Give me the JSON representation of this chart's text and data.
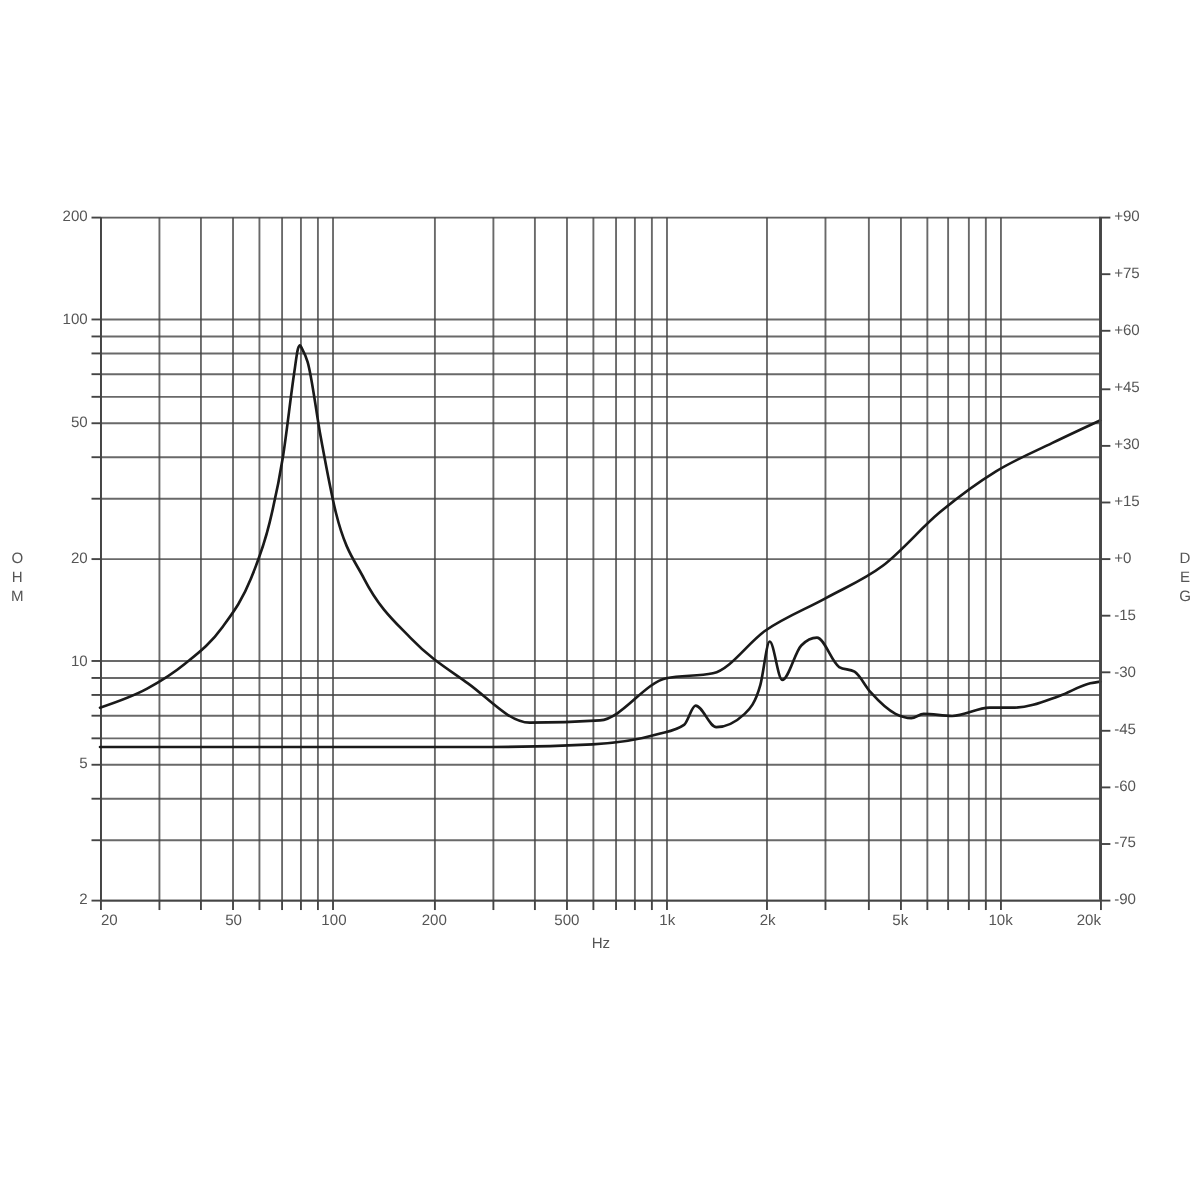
{
  "chart_data": {
    "type": "line",
    "xlabel": "Hz",
    "ylabel": "OHM",
    "y2label": "DEG",
    "log": "xy",
    "grid": true,
    "line_style": "solid",
    "marker": "none",
    "xlim": [
      20,
      20000
    ],
    "ylim": [
      2,
      200
    ],
    "y2lim": [
      -90,
      90
    ],
    "xticks": [
      20,
      {
        "value": 30,
        "label": null
      },
      {
        "value": 40,
        "label": null
      },
      50,
      {
        "value": 60,
        "label": null
      },
      {
        "value": 70,
        "label": null
      },
      {
        "value": 80,
        "label": null
      },
      {
        "value": 90,
        "label": null
      },
      100,
      200,
      {
        "value": 300,
        "label": null
      },
      {
        "value": 400,
        "label": null
      },
      500,
      {
        "value": 600,
        "label": null
      },
      {
        "value": 700,
        "label": null
      },
      {
        "value": 800,
        "label": null
      },
      {
        "value": 900,
        "label": null
      },
      {
        "value": 1000,
        "label": "1k"
      },
      {
        "value": 2000,
        "label": "2k"
      },
      {
        "value": 3000,
        "label": null
      },
      {
        "value": 4000,
        "label": null
      },
      {
        "value": 5000,
        "label": "5k"
      },
      {
        "value": 6000,
        "label": null
      },
      {
        "value": 7000,
        "label": null
      },
      {
        "value": 8000,
        "label": null
      },
      {
        "value": 9000,
        "label": null
      },
      {
        "value": 10000,
        "label": "10k"
      },
      {
        "value": 20000,
        "label": "20k"
      }
    ],
    "yticks": [
      2,
      {
        "value": 3,
        "label": null
      },
      {
        "value": 4,
        "label": null
      },
      5,
      {
        "value": 6,
        "label": null
      },
      {
        "value": 7,
        "label": null
      },
      {
        "value": 8,
        "label": null
      },
      {
        "value": 9,
        "label": null
      },
      10,
      20,
      {
        "value": 30,
        "label": null
      },
      {
        "value": 40,
        "label": null
      },
      50,
      {
        "value": 60,
        "label": null
      },
      {
        "value": 70,
        "label": null
      },
      {
        "value": 80,
        "label": null
      },
      {
        "value": 90,
        "label": null
      },
      100,
      200
    ],
    "y2ticks": [
      -90,
      -75,
      -60,
      -45,
      -30,
      -15,
      {
        "value": 0,
        "label": "+0"
      },
      {
        "value": 15,
        "label": "+15"
      },
      {
        "value": 30,
        "label": "+30"
      },
      {
        "value": 45,
        "label": "+45"
      },
      {
        "value": 60,
        "label": "+60"
      },
      {
        "value": 75,
        "label": "+75"
      },
      {
        "value": 90,
        "label": "+90"
      }
    ],
    "series": [
      {
        "color": "#1a1a1a",
        "x": [
          20,
          27.7,
          35.9,
          46.7,
          56.7,
          64.6,
          70.8,
          76.6,
          78.5,
          79.6,
          80.8,
          83.9,
          91.9,
          102,
          124,
          172,
          254,
          389,
          632,
          1000,
          1380,
          1990,
          3020,
          4460,
          6600,
          9750,
          14400,
          20000
        ],
        "values": [
          7.3,
          8.3,
          9.8,
          12.6,
          17.4,
          25.5,
          39.7,
          70.4,
          82,
          84,
          82,
          75.1,
          45.2,
          27.2,
          17.4,
          11.6,
          8.6,
          6.6,
          6.7,
          8.9,
          9.2,
          12.3,
          15.3,
          19.0,
          27.2,
          35.9,
          43.5,
          50.6
        ]
      },
      {
        "color": "#1a1a1a",
        "x": [
          20,
          100,
          300,
          600,
          940,
          1130,
          1224,
          1413,
          1718,
          1914,
          2043,
          2226,
          2540,
          2830,
          3300,
          3670,
          4100,
          4870,
          5430,
          5920,
          7200,
          9330,
          11100,
          15100,
          18700,
          20000
        ],
        "values": [
          5.6,
          5.6,
          5.6,
          5.7,
          6.1,
          6.5,
          7.4,
          6.4,
          7.0,
          8.5,
          11.4,
          8.8,
          11.1,
          11.7,
          9.6,
          9.3,
          8.1,
          7.0,
          6.8,
          7.0,
          6.9,
          7.3,
          7.3,
          7.9,
          8.6,
          8.7
        ]
      }
    ]
  }
}
